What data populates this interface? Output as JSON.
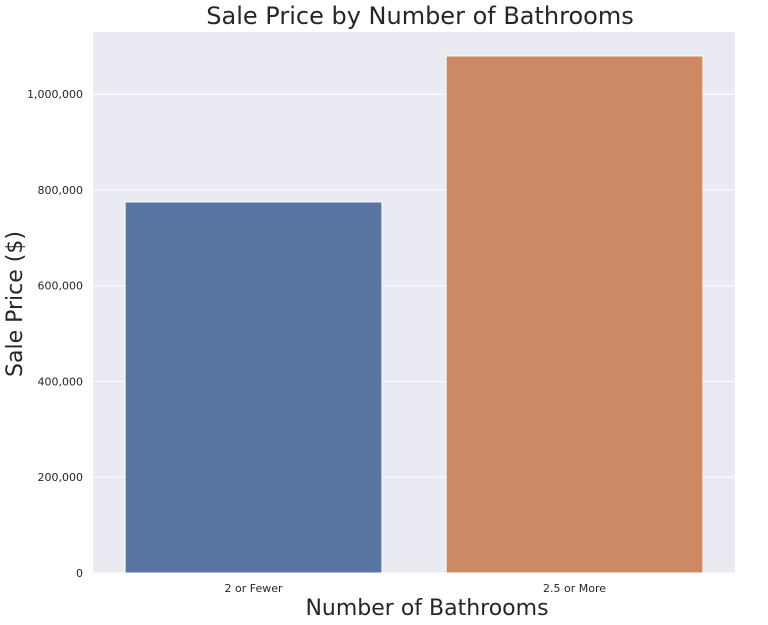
{
  "chart_data": {
    "type": "bar",
    "title": "Sale Price by Number of Bathrooms",
    "xlabel": "Number of Bathrooms",
    "ylabel": "Sale Price ($)",
    "categories": [
      "2 or Fewer",
      "2.5 or More"
    ],
    "values": [
      775000,
      1080000
    ],
    "ylim": [
      0,
      1130000
    ],
    "yticks": [
      0,
      200000,
      400000,
      600000,
      800000,
      1000000
    ],
    "ytick_labels": [
      "0",
      "200,000",
      "400,000",
      "600,000",
      "800,000",
      "1,000,000"
    ],
    "grid": true,
    "legend": "none",
    "colors": {
      "plot_background": "#EAEAF2",
      "gridline": "#FFFFFF",
      "bars": [
        "#5875A4",
        "#CC8963"
      ],
      "text": "#262626"
    }
  }
}
